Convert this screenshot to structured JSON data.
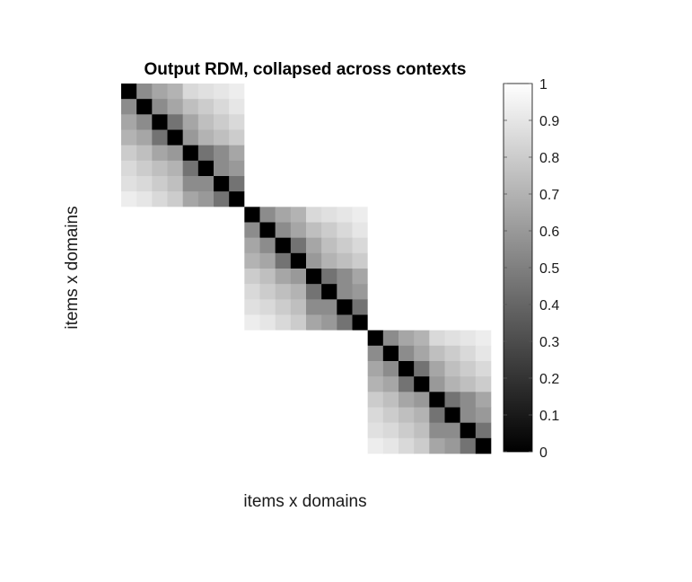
{
  "chart_data": {
    "type": "heatmap",
    "title": "Output RDM, collapsed across contexts",
    "xlabel": "items x domains",
    "ylabel": "items x domains",
    "n_domains": 3,
    "items_per_domain": 8,
    "block_pattern": [
      [
        0.0,
        0.55,
        0.65,
        0.7,
        0.85,
        0.88,
        0.9,
        0.93
      ],
      [
        0.55,
        0.0,
        0.55,
        0.65,
        0.75,
        0.8,
        0.85,
        0.9
      ],
      [
        0.65,
        0.55,
        0.0,
        0.45,
        0.65,
        0.75,
        0.8,
        0.85
      ],
      [
        0.7,
        0.65,
        0.45,
        0.0,
        0.6,
        0.7,
        0.75,
        0.8
      ],
      [
        0.8,
        0.75,
        0.65,
        0.6,
        0.0,
        0.45,
        0.55,
        0.65
      ],
      [
        0.85,
        0.8,
        0.75,
        0.7,
        0.45,
        0.0,
        0.55,
        0.6
      ],
      [
        0.88,
        0.85,
        0.8,
        0.75,
        0.55,
        0.55,
        0.0,
        0.45
      ],
      [
        0.93,
        0.9,
        0.85,
        0.8,
        0.65,
        0.6,
        0.45,
        0.0
      ]
    ],
    "off_block_value": 1.0,
    "colormap": "gray",
    "clim": [
      0,
      1
    ],
    "colorbar_ticks": [
      "0",
      "0.1",
      "0.2",
      "0.3",
      "0.4",
      "0.5",
      "0.6",
      "0.7",
      "0.8",
      "0.9",
      "1"
    ],
    "colorbar_tick_values": [
      0,
      0.1,
      0.2,
      0.3,
      0.4,
      0.5,
      0.6,
      0.7,
      0.8,
      0.9,
      1
    ],
    "grid": false,
    "colorbar_position": "right"
  }
}
